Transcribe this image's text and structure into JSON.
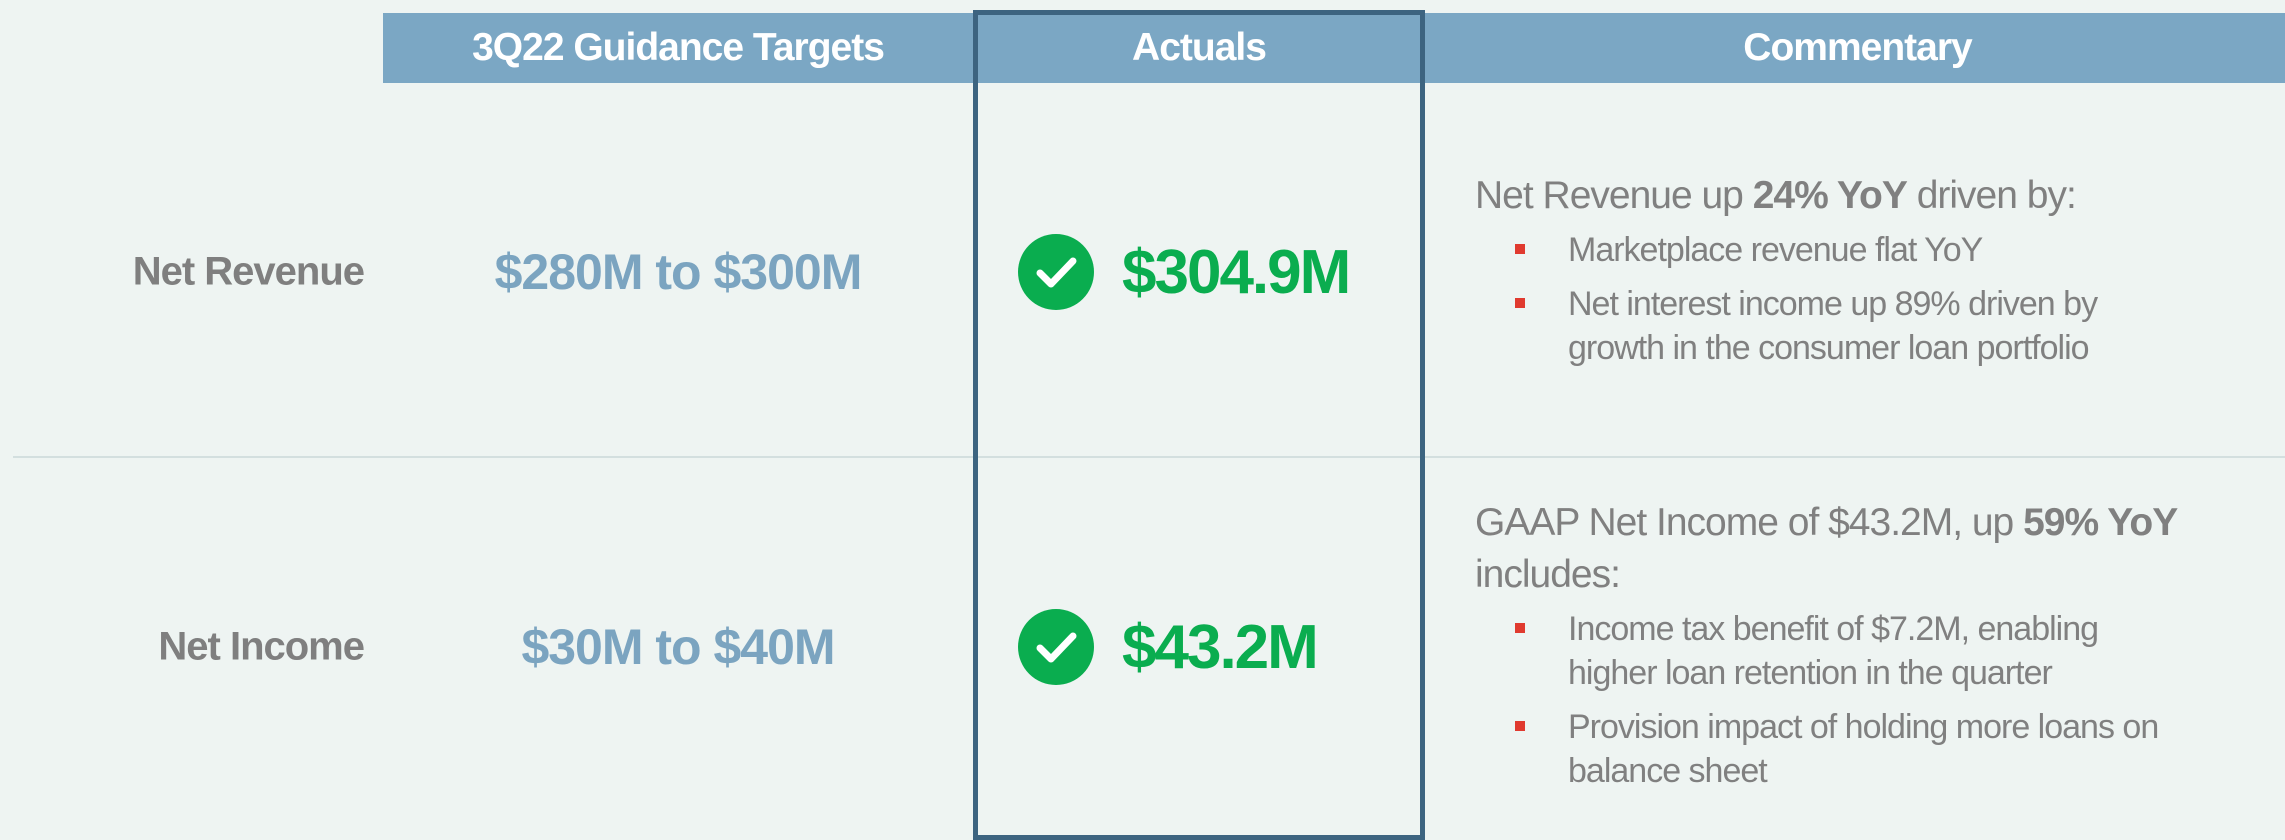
{
  "header": {
    "cells": [
      "3Q22 Guidance Targets",
      "Actuals",
      "Commentary"
    ]
  },
  "rows": [
    {
      "label": "Net Revenue",
      "guidance": "$280M to $300M",
      "actual": "$304.9M",
      "commentary": {
        "heading": [
          {
            "text": "Net Revenue up "
          },
          {
            "text": "24% YoY",
            "bold": true
          },
          {
            "text": " driven by:"
          }
        ],
        "bullets": [
          "Marketplace revenue flat YoY",
          "Net interest income up 89% driven by growth in the consumer loan portfolio"
        ]
      }
    },
    {
      "label": "Net Income",
      "guidance": "$30M to $40M",
      "actual": "$43.2M",
      "commentary": {
        "heading": [
          {
            "text": "GAAP Net Income of $43.2M, up "
          },
          {
            "text": "59% YoY",
            "bold": true
          },
          {
            "text": " includes:"
          }
        ],
        "bullets": [
          "Income tax benefit of $7.2M, enabling higher loan retention in the quarter",
          "Provision impact of holding more loans on balance sheet"
        ]
      }
    }
  ]
}
